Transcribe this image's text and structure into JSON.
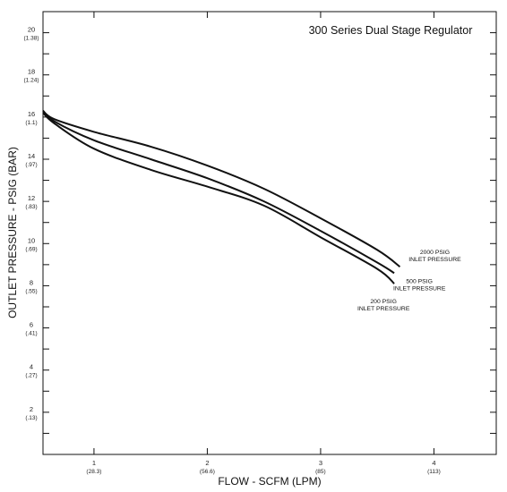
{
  "chart_data": {
    "type": "line",
    "title": "300 Series Dual Stage Regulator",
    "xlabel": "FLOW - SCFM (LPM)",
    "ylabel": "OUTLET PRESSURE - PSIG (BAR)",
    "xlim": [
      0.55,
      4.55
    ],
    "ylim": [
      0,
      21
    ],
    "grid": false,
    "title_color": "#b5173a",
    "x_ticks": [
      {
        "value": 1,
        "label": "1",
        "sublabel": "(28.3)"
      },
      {
        "value": 2,
        "label": "2",
        "sublabel": "(56.6)"
      },
      {
        "value": 3,
        "label": "3",
        "sublabel": "(85)"
      },
      {
        "value": 4,
        "label": "4",
        "sublabel": "(113)"
      }
    ],
    "y_ticks": [
      {
        "value": 2,
        "label": "2",
        "sublabel": "(.13)"
      },
      {
        "value": 4,
        "label": "4",
        "sublabel": "(.27)"
      },
      {
        "value": 6,
        "label": "6",
        "sublabel": "(.41)"
      },
      {
        "value": 8,
        "label": "8",
        "sublabel": "(.55)"
      },
      {
        "value": 10,
        "label": "10",
        "sublabel": "(.69)"
      },
      {
        "value": 12,
        "label": "12",
        "sublabel": "(.83)"
      },
      {
        "value": 14,
        "label": "14",
        "sublabel": "(.97)"
      },
      {
        "value": 16,
        "label": "16",
        "sublabel": "(1.1)"
      },
      {
        "value": 18,
        "label": "18",
        "sublabel": "(1.24)"
      },
      {
        "value": 20,
        "label": "20",
        "sublabel": "(1.38)"
      }
    ],
    "series": [
      {
        "name": "2000 PSIG INLET PRESSURE",
        "label_lines": [
          "2000 PSIG",
          "INLET PRESSURE"
        ],
        "x": [
          0.55,
          0.65,
          1.0,
          1.5,
          2.0,
          2.5,
          3.0,
          3.5,
          3.7
        ],
        "y": [
          16.3,
          15.9,
          15.3,
          14.6,
          13.7,
          12.6,
          11.2,
          9.7,
          8.9
        ]
      },
      {
        "name": "500 PSIG INLET PRESSURE",
        "label_lines": [
          "500 PSIG",
          "INLET PRESSURE"
        ],
        "x": [
          0.55,
          0.65,
          1.0,
          1.5,
          2.0,
          2.5,
          3.0,
          3.5,
          3.65
        ],
        "y": [
          16.3,
          15.8,
          14.9,
          14.0,
          13.1,
          12.0,
          10.6,
          9.1,
          8.6
        ]
      },
      {
        "name": "200 PSIG INLET PRESSURE",
        "label_lines": [
          "200 PSIG",
          "INLET PRESSURE"
        ],
        "x": [
          0.55,
          0.65,
          1.0,
          1.5,
          2.0,
          2.5,
          3.0,
          3.5,
          3.65
        ],
        "y": [
          16.2,
          15.7,
          14.5,
          13.5,
          12.7,
          11.8,
          10.3,
          8.8,
          8.1
        ]
      }
    ]
  }
}
